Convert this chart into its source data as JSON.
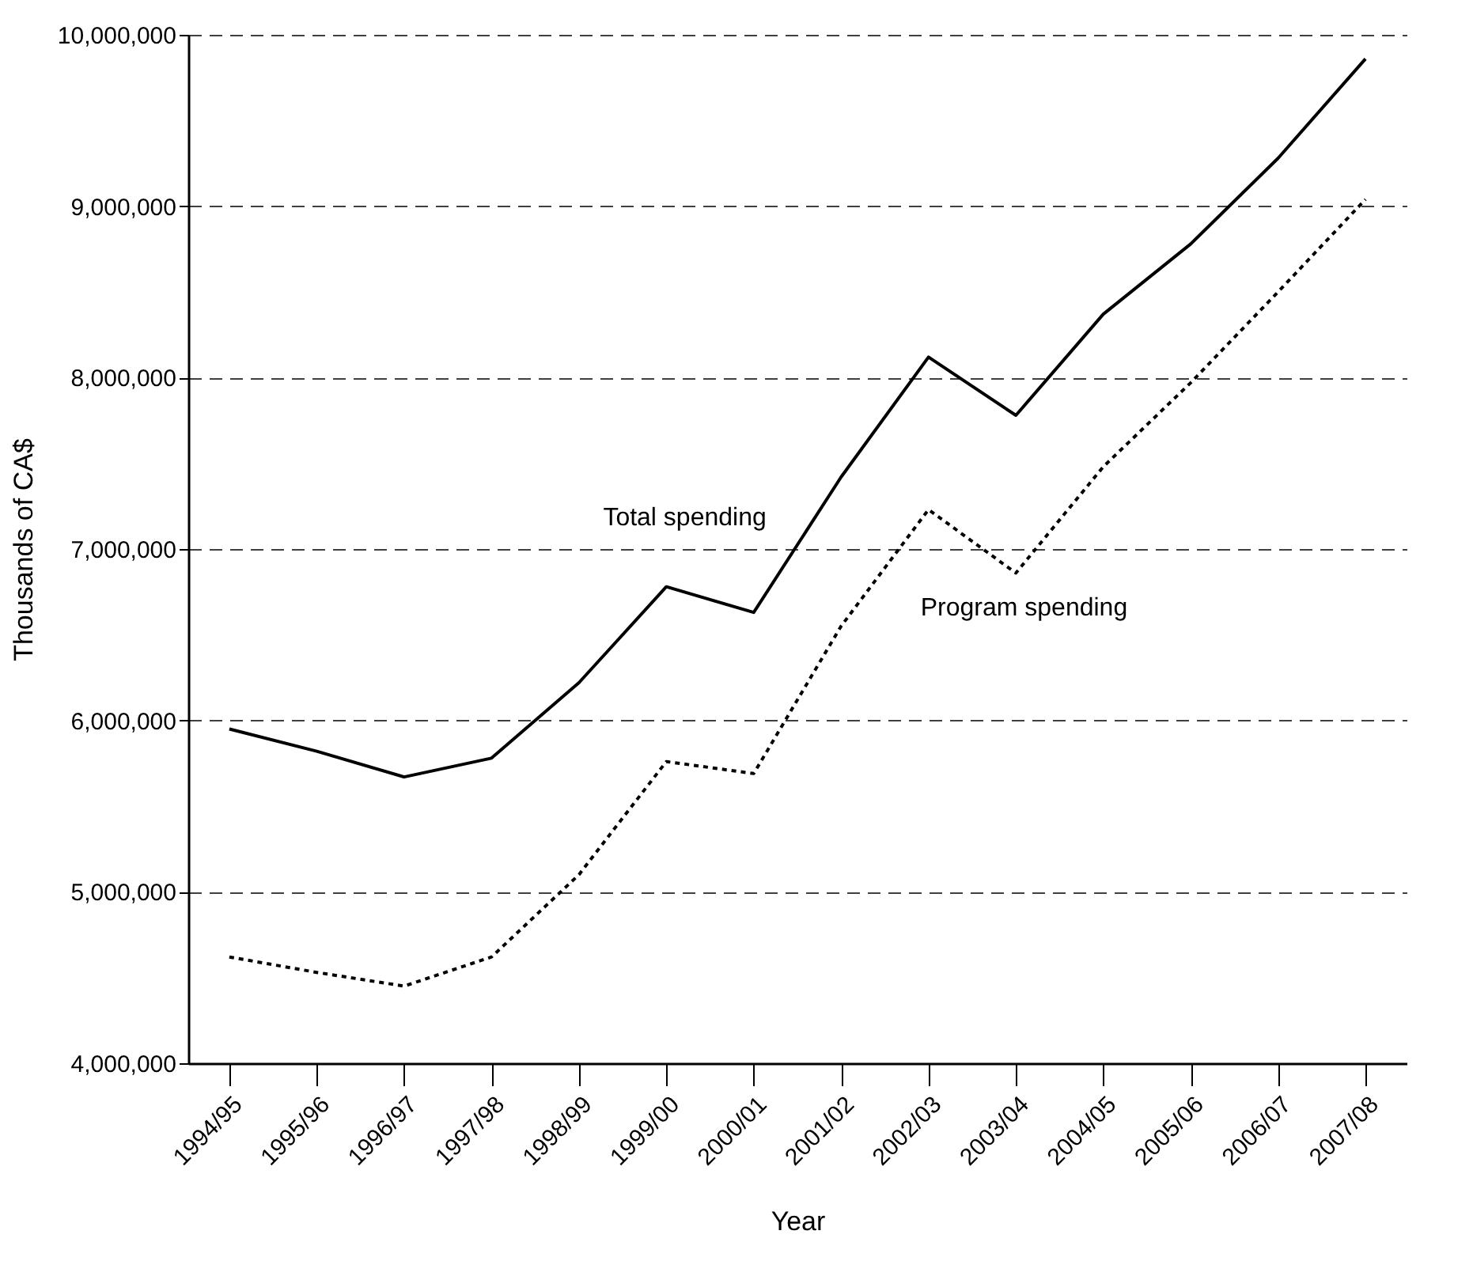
{
  "chart_data": {
    "type": "line",
    "xlabel": "Year",
    "ylabel": "Thousands of CA$",
    "categories": [
      "1994/95",
      "1995/96",
      "1996/97",
      "1997/98",
      "1998/99",
      "1999/00",
      "2000/01",
      "2001/02",
      "2002/03",
      "2003/04",
      "2004/05",
      "2005/06",
      "2006/07",
      "2007/08"
    ],
    "series": [
      {
        "name": "Total spending",
        "color": "#000000",
        "line_style": "solid",
        "values": [
          5950000,
          5820000,
          5670000,
          5780000,
          6220000,
          6780000,
          6630000,
          7420000,
          8120000,
          7780000,
          8370000,
          8780000,
          9280000,
          9860000
        ]
      },
      {
        "name": "Program spending",
        "color": "#000000",
        "line_style": "dotted",
        "values": [
          4620000,
          4530000,
          4450000,
          4620000,
          5100000,
          5760000,
          5690000,
          6550000,
          7230000,
          6860000,
          7480000,
          7970000,
          8500000,
          9040000
        ]
      }
    ],
    "ylim": [
      4000000,
      10000000
    ],
    "yticks": [
      {
        "value": 4000000,
        "label": "4,000,000"
      },
      {
        "value": 5000000,
        "label": "5,000,000"
      },
      {
        "value": 6000000,
        "label": "6,000,000"
      },
      {
        "value": 7000000,
        "label": "7,000,000"
      },
      {
        "value": 8000000,
        "label": "8,000,000"
      },
      {
        "value": 9000000,
        "label": "9,000,000"
      },
      {
        "value": 10000000,
        "label": "10,000,000"
      }
    ],
    "grid": "y",
    "legend": false,
    "marker": "none"
  }
}
